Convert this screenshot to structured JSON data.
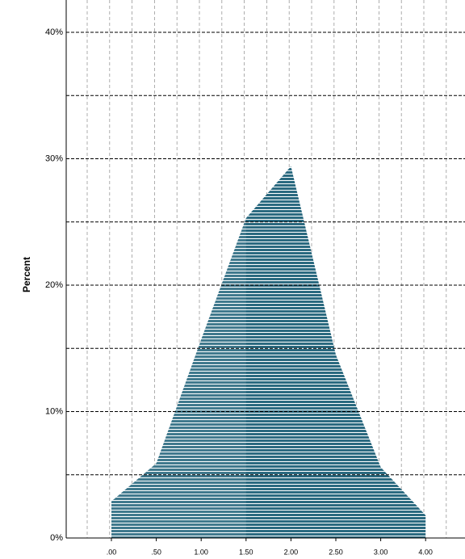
{
  "chart_data": {
    "type": "area",
    "y_label": "Percent",
    "categories": [
      ".00",
      ".50",
      "1.00",
      "1.50",
      "2.00",
      "2.50",
      "3.00",
      "4.00"
    ],
    "values": [
      2.9,
      5.9,
      15.7,
      25.3,
      29.4,
      14.5,
      5.6,
      1.8
    ],
    "color": "#2b6a80",
    "ylim": [
      0,
      42
    ],
    "yticks": [
      {
        "value": 0,
        "label": "0%"
      },
      {
        "value": 10,
        "label": "10%"
      },
      {
        "value": 20,
        "label": "20%"
      },
      {
        "value": 30,
        "label": "30%"
      },
      {
        "value": 40,
        "label": "40%"
      }
    ],
    "minor_yticks": [
      5,
      15,
      25,
      35
    ],
    "grid": true
  }
}
